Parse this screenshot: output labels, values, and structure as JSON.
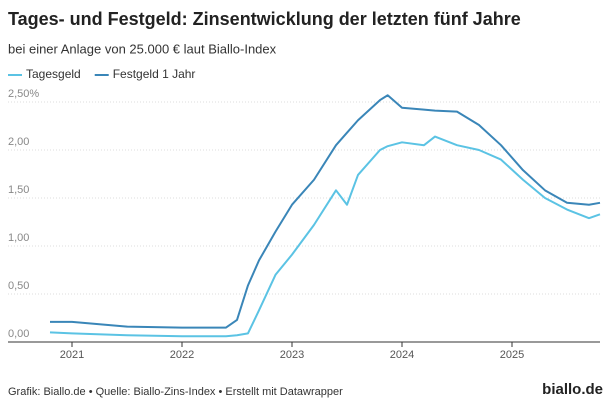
{
  "chart_data": {
    "type": "line",
    "title": "Tages- und Festgeld: Zinsentwicklung der letzten fünf Jahre",
    "subtitle": "bei einer Anlage von 25.000 € laut Biallo-Index",
    "source": "Grafik: Biallo.de • Quelle: Biallo-Zins-Index • Erstellt mit Datawrapper",
    "logo": "biallo.de",
    "x": [
      2020.8,
      2021.0,
      2021.5,
      2022.0,
      2022.4,
      2022.5,
      2022.6,
      2022.7,
      2022.85,
      2023.0,
      2023.2,
      2023.4,
      2023.5,
      2023.6,
      2023.8,
      2023.87,
      2024.0,
      2024.2,
      2024.3,
      2024.5,
      2024.7,
      2024.9,
      2025.1,
      2025.3,
      2025.5,
      2025.7,
      2025.8
    ],
    "series": [
      {
        "name": "Tagesgeld",
        "color": "#5bc3e4",
        "values": [
          0.1,
          0.09,
          0.07,
          0.06,
          0.06,
          0.07,
          0.09,
          0.33,
          0.7,
          0.91,
          1.22,
          1.58,
          1.43,
          1.74,
          2.0,
          2.04,
          2.08,
          2.05,
          2.14,
          2.05,
          2.0,
          1.9,
          1.69,
          1.5,
          1.38,
          1.29,
          1.33
        ]
      },
      {
        "name": "Festgeld 1 Jahr",
        "color": "#3a86b8",
        "values": [
          0.21,
          0.21,
          0.16,
          0.15,
          0.15,
          0.23,
          0.59,
          0.85,
          1.15,
          1.43,
          1.69,
          2.05,
          2.18,
          2.31,
          2.52,
          2.57,
          2.44,
          2.42,
          2.41,
          2.4,
          2.26,
          2.05,
          1.79,
          1.58,
          1.45,
          1.43,
          1.45
        ]
      }
    ],
    "xlim": [
      2020.8,
      2025.8
    ],
    "xticks": [
      2021,
      2022,
      2023,
      2024,
      2025
    ],
    "ylim": [
      0,
      2.5
    ],
    "yticks": [
      {
        "value": 0,
        "label": "0,00"
      },
      {
        "value": 0.5,
        "label": "0,50"
      },
      {
        "value": 1,
        "label": "1,00"
      },
      {
        "value": 1.5,
        "label": "1,50"
      },
      {
        "value": 2,
        "label": "2,00"
      },
      {
        "value": 2.5,
        "label": "2,50%"
      }
    ],
    "grid": true
  }
}
